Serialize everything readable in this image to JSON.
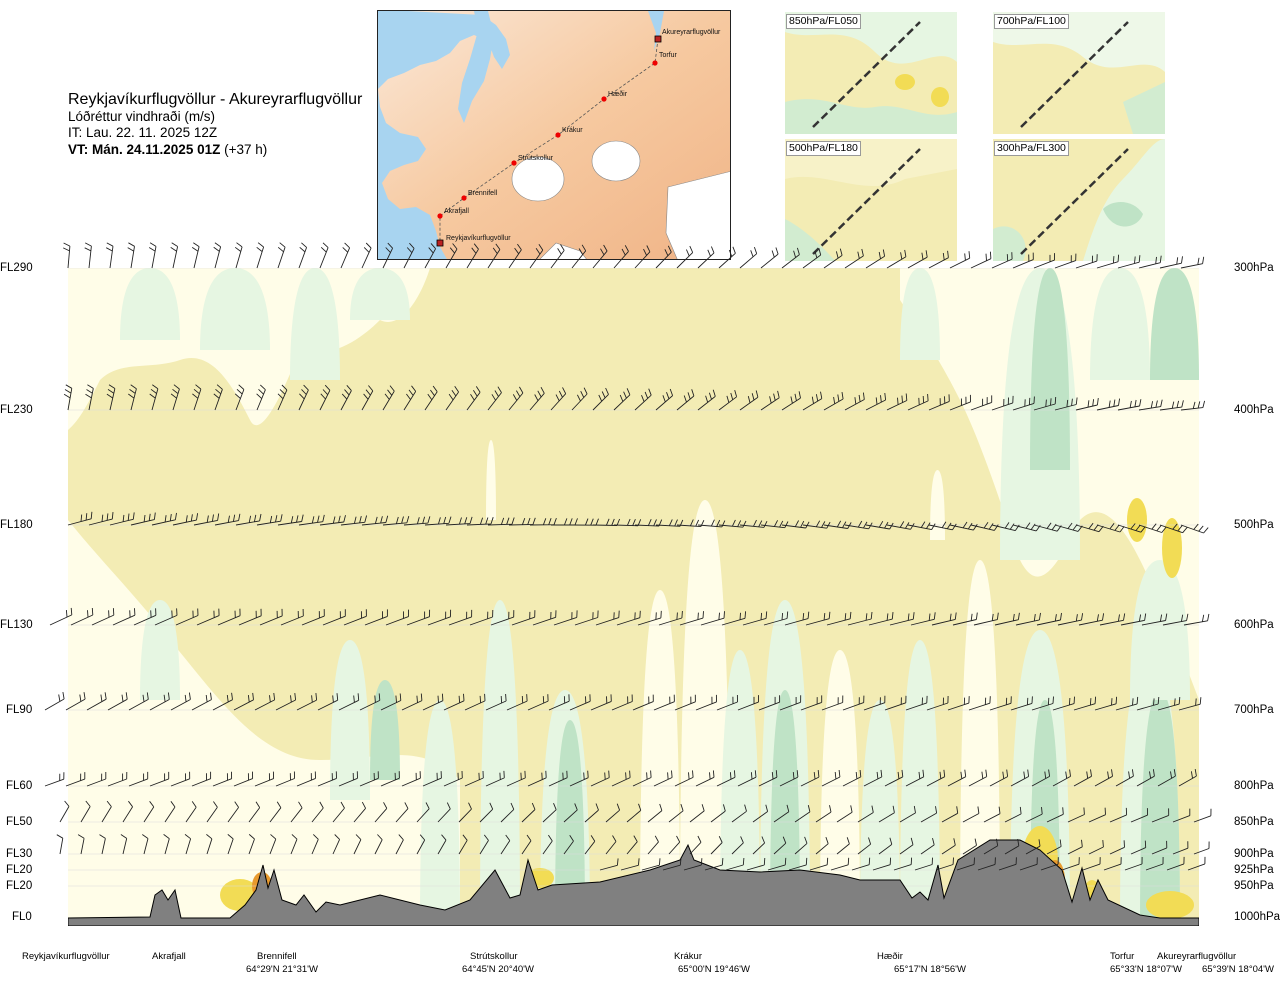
{
  "header": {
    "route": "Reykjavíkurflugvöllur - Akureyrarflugvöllur",
    "parameter": "Lóðréttur vindhraði (m/s)",
    "issue_time": "IT: Lau. 22. 11. 2025 12Z",
    "valid_label": "VT: Mán. 24.11.2025 01Z",
    "valid_offset": "(+37 h)"
  },
  "map": {
    "points": [
      {
        "name": "Akureyrarflugvöllur",
        "type": "airport"
      },
      {
        "name": "Torfur",
        "type": "waypoint"
      },
      {
        "name": "Hæðir",
        "type": "waypoint"
      },
      {
        "name": "Krákur",
        "type": "waypoint"
      },
      {
        "name": "Strútskollur",
        "type": "waypoint"
      },
      {
        "name": "Brennifell",
        "type": "waypoint"
      },
      {
        "name": "Akrafjall",
        "type": "waypoint"
      },
      {
        "name": "Reykjavíkurflugvöllur",
        "type": "airport"
      }
    ]
  },
  "insets": [
    {
      "label": "850hPa/FL050"
    },
    {
      "label": "700hPa/FL100"
    },
    {
      "label": "500hPa/FL180"
    },
    {
      "label": "300hPa/FL300"
    }
  ],
  "chart_data": {
    "type": "heatmap",
    "title": "Reykjavíkurflugvöllur - Akureyrarflugvöllur",
    "subtitle": "Lóðréttur vindhraði (m/s)",
    "colors": {
      "strong_up": "#bfe3c6",
      "weak_up": "#e6f6e2",
      "neutral": "#fffde8",
      "weak_down": "#f3ecb4",
      "moderate_down": "#f2dc55",
      "strong_down": "#e89a2e",
      "terrain": "#808080"
    },
    "levels": [
      {
        "flight_level": "FL290",
        "pressure": "300hPa"
      },
      {
        "flight_level": "FL230",
        "pressure": "400hPa"
      },
      {
        "flight_level": "FL180",
        "pressure": "500hPa"
      },
      {
        "flight_level": "FL130",
        "pressure": "600hPa"
      },
      {
        "flight_level": "FL90",
        "pressure": "700hPa"
      },
      {
        "flight_level": "FL60",
        "pressure": "800hPa"
      },
      {
        "flight_level": "FL50",
        "pressure": "850hPa"
      },
      {
        "flight_level": "FL30",
        "pressure": "900hPa"
      },
      {
        "flight_level": "FL20",
        "pressure": "925hPa"
      },
      {
        "flight_level": "FL20",
        "pressure": "950hPa"
      },
      {
        "flight_level": "FL0",
        "pressure": "1000hPa"
      }
    ],
    "waypoints": [
      {
        "name": "Reykjavíkurflugvöllur",
        "coord": ""
      },
      {
        "name": "Akrafjall",
        "coord": ""
      },
      {
        "name": "Brennifell",
        "coord": "64°29'N 21°31'W"
      },
      {
        "name": "Strútskollur",
        "coord": "64°45'N 20°40'W"
      },
      {
        "name": "Krákur",
        "coord": "65°00'N 19°46'W"
      },
      {
        "name": "Hæðir",
        "coord": "65°17'N 18°56'W"
      },
      {
        "name": "Torfur",
        "coord": "65°33'N 18°07'W"
      },
      {
        "name": "Akureyrarflugvöllur",
        "coord": "65°39'N 18°04'W"
      }
    ]
  }
}
